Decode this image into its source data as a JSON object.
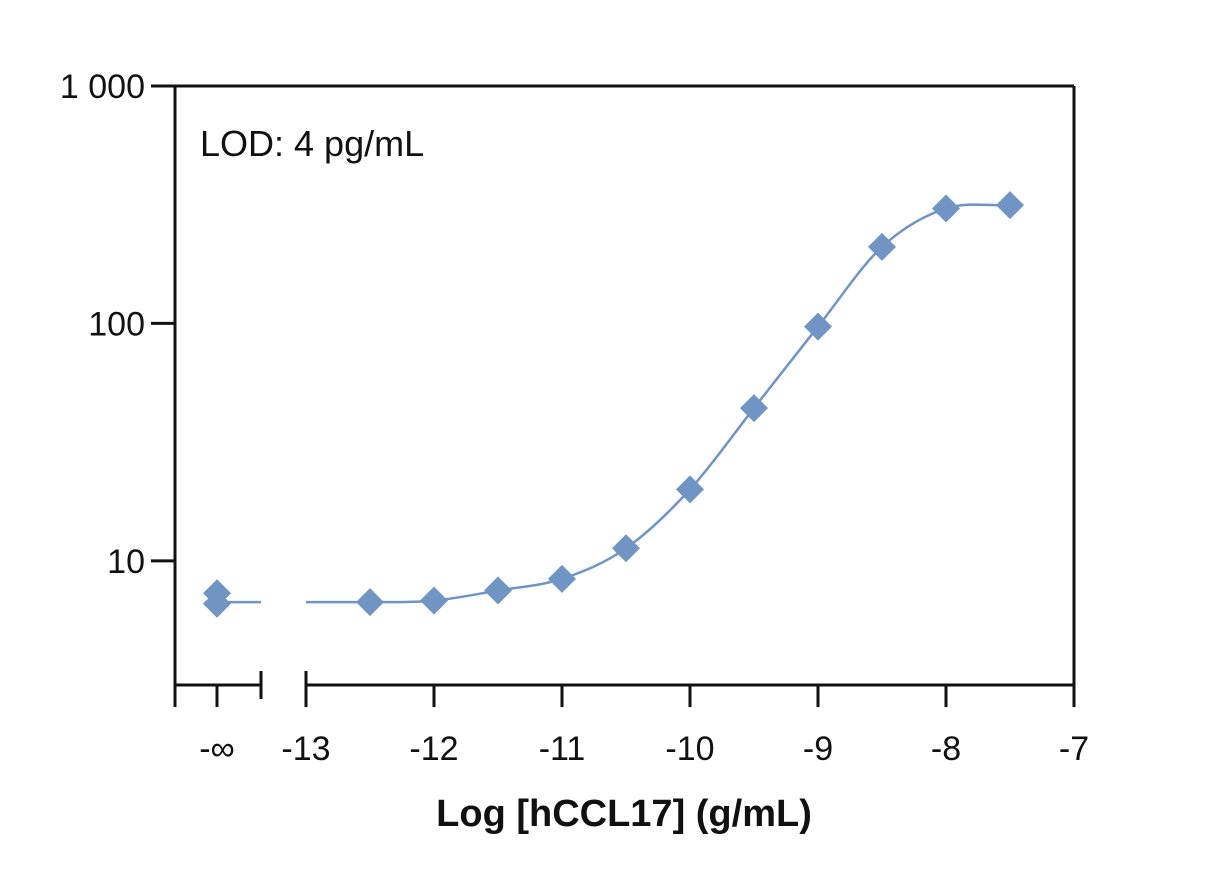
{
  "chart_data": {
    "type": "scatter",
    "title": "",
    "xlabel": "Log [hCCL17] (g/mL)",
    "ylabel": "",
    "annotation": "LOD: 4 pg/mL",
    "y_scale": "log",
    "ylim": [
      3,
      1000
    ],
    "xlim": [
      -13,
      -7
    ],
    "y_ticks": [
      {
        "value": 10,
        "label": "10"
      },
      {
        "value": 100,
        "label": "100"
      },
      {
        "value": 1000,
        "label": "1 000"
      }
    ],
    "x_ticks": [
      {
        "value": -13,
        "label": "-13"
      },
      {
        "value": -12,
        "label": "-12"
      },
      {
        "value": -11,
        "label": "-11"
      },
      {
        "value": -10,
        "label": "-10"
      },
      {
        "value": -9,
        "label": "-9"
      },
      {
        "value": -8,
        "label": "-8"
      },
      {
        "value": -7,
        "label": "-7"
      }
    ],
    "axis_break": {
      "label": "-∞"
    },
    "series": [
      {
        "color": "#7094c4",
        "marker": "diamond",
        "zero_dose_y": [
          7.3,
          6.6
        ],
        "points": [
          {
            "x": -12.5,
            "y": 6.7
          },
          {
            "x": -12.0,
            "y": 6.8
          },
          {
            "x": -11.5,
            "y": 7.5
          },
          {
            "x": -11.0,
            "y": 8.4
          },
          {
            "x": -10.5,
            "y": 11.3
          },
          {
            "x": -10.0,
            "y": 20
          },
          {
            "x": -9.5,
            "y": 44
          },
          {
            "x": -9.0,
            "y": 97
          },
          {
            "x": -8.5,
            "y": 210
          },
          {
            "x": -8.0,
            "y": 305
          },
          {
            "x": -7.5,
            "y": 315
          }
        ]
      }
    ],
    "grid": false,
    "legend": "none",
    "colors": {
      "series": "#7094c4",
      "axis": "#111111"
    }
  }
}
